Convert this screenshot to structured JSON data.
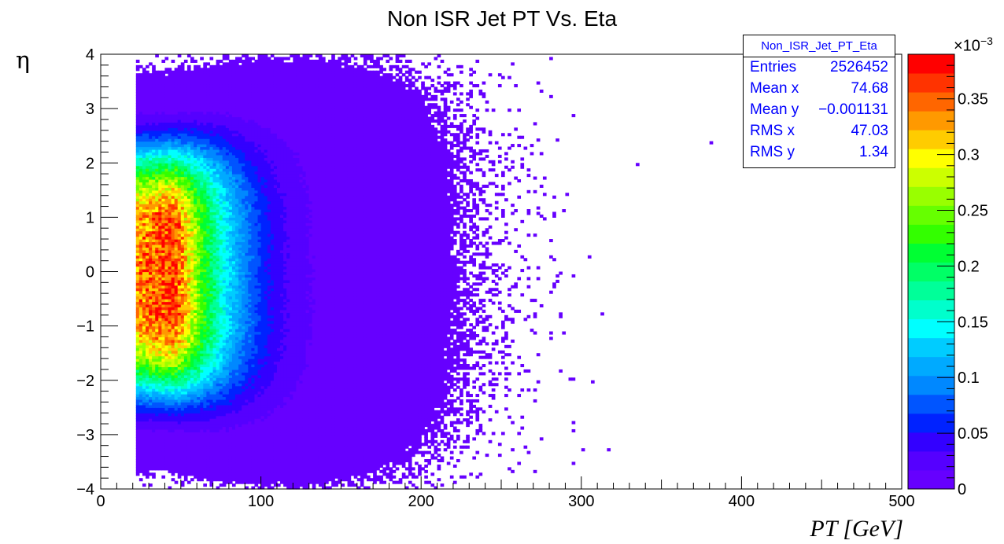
{
  "chart_data": {
    "type": "heatmap",
    "title": "Non ISR Jet PT Vs. Eta",
    "xlabel": "PT [GeV]",
    "ylabel": "η",
    "xlim": [
      0,
      500
    ],
    "ylim": [
      -4,
      4
    ],
    "x_tick_labels": [
      "0",
      "100",
      "200",
      "300",
      "400",
      "500"
    ],
    "y_tick_labels": [
      "−4",
      "−3",
      "−2",
      "−1",
      "0",
      "1",
      "2",
      "3",
      "4"
    ],
    "x_ticks": [
      0,
      100,
      200,
      300,
      400,
      500
    ],
    "y_ticks": [
      -4,
      -3,
      -2,
      -1,
      0,
      1,
      2,
      3,
      4
    ],
    "colorbar": {
      "range": [
        0,
        0.00039
      ],
      "tick_values": [
        0,
        0.05,
        0.1,
        0.15,
        0.2,
        0.25,
        0.3,
        0.35
      ],
      "tick_labels": [
        "0",
        "0.05",
        "0.1",
        "0.15",
        "0.2",
        "0.25",
        "0.3",
        "0.35"
      ],
      "exponent_base": "×10",
      "exponent_power": "−3",
      "palette": [
        "#6600ff",
        "#5500ff",
        "#3300ff",
        "#0022ff",
        "#0055ff",
        "#0088ff",
        "#00aaff",
        "#00ccff",
        "#00ffff",
        "#00ffcc",
        "#00ff99",
        "#00ff66",
        "#00ff33",
        "#33ff00",
        "#66ff00",
        "#99ff00",
        "#ccff00",
        "#ffff00",
        "#ffcc00",
        "#ff9900",
        "#ff6600",
        "#ff3300",
        "#ff0000"
      ]
    },
    "distribution": {
      "pt_min": 22,
      "pt_mode": 45,
      "peak_density": 0.00037,
      "eta_sigma_at_peak": 1.6,
      "eta_sigma_growth": 0.004,
      "pt_falloff": 35
    },
    "stats": {
      "name": "Non_ISR_Jet_PT_Eta",
      "rows": [
        {
          "key": "Entries",
          "value": "2526452"
        },
        {
          "key": "Mean x",
          "value": "74.68"
        },
        {
          "key": "Mean y",
          "value": "−0.001131"
        },
        {
          "key": "RMS x",
          "value": "47.03"
        },
        {
          "key": "RMS y",
          "value": "1.34"
        }
      ]
    }
  }
}
